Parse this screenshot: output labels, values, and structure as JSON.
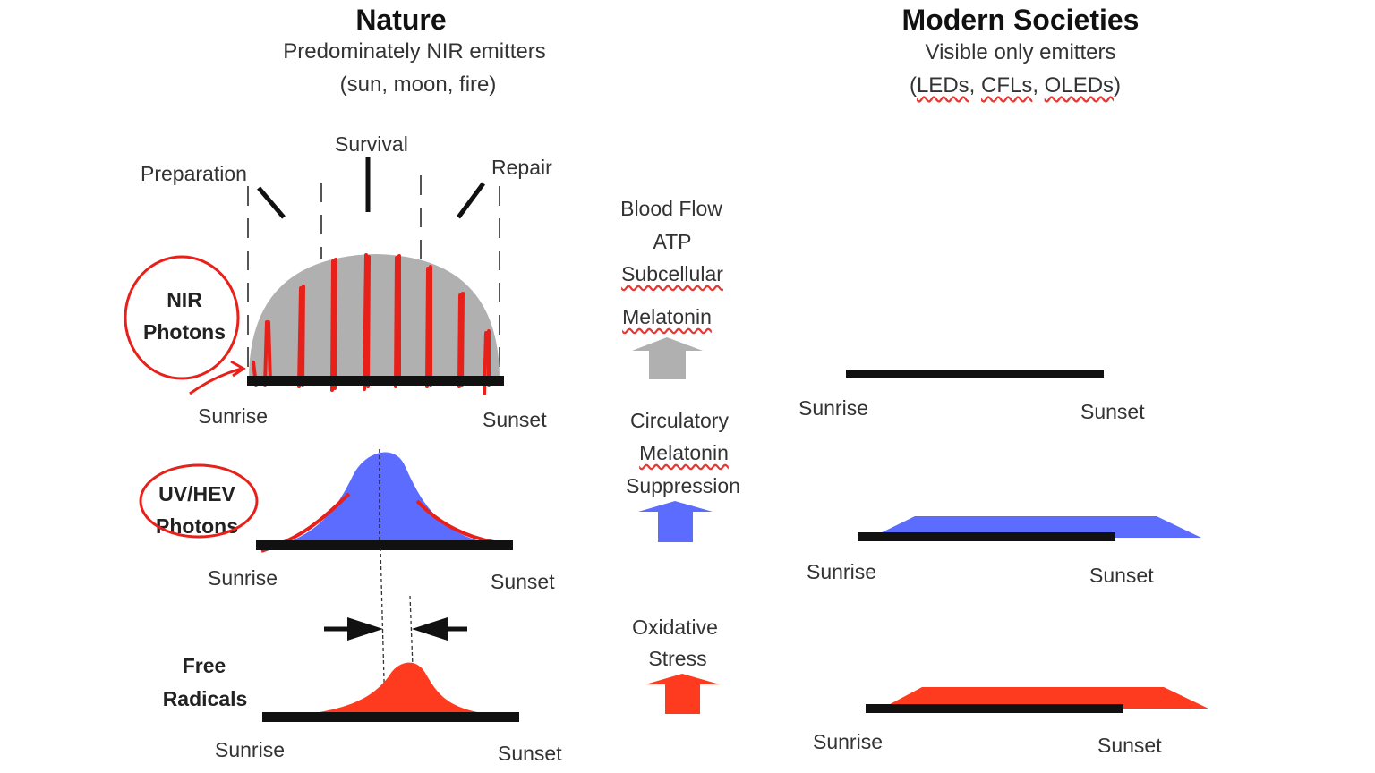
{
  "nature": {
    "title": "Nature",
    "subtitle1": "Predominately NIR emitters",
    "subtitle2": "(sun, moon, fire)"
  },
  "modern": {
    "title": "Modern Societies",
    "subtitle1": "Visible only emitters",
    "subtitle2_prefix": "(",
    "subtitle2_items": [
      "LEDs",
      "CFLs",
      "OLEDs"
    ],
    "subtitle2_sep": ", ",
    "subtitle2_suffix": ")"
  },
  "phases": {
    "preparation": "Preparation",
    "survival": "Survival",
    "repair": "Repair"
  },
  "rows": {
    "nir": {
      "label_line1": "NIR",
      "label_line2": "Photons",
      "sunrise": "Sunrise",
      "sunset": "Sunset"
    },
    "uv": {
      "label_line1": "UV/HEV",
      "label_line2": "Photons",
      "sunrise": "Sunrise",
      "sunset": "Sunset"
    },
    "fr": {
      "label_line1": "Free",
      "label_line2": "Radicals",
      "sunrise": "Sunrise",
      "sunset": "Sunset"
    }
  },
  "middle": {
    "block1": [
      "Blood Flow",
      "ATP",
      "Subcellular",
      "Melatonin"
    ],
    "block2": [
      "Circulatory",
      "Melatonin",
      "Suppression"
    ],
    "block3": [
      "Oxidative",
      "Stress"
    ]
  },
  "modern_rows": {
    "r1": {
      "sunrise": "Sunrise",
      "sunset": "Sunset"
    },
    "r2": {
      "sunrise": "Sunrise",
      "sunset": "Sunset"
    },
    "r3": {
      "sunrise": "Sunrise",
      "sunset": "Sunset"
    }
  },
  "colors": {
    "gray": "#b0b0b0",
    "blue": "#5b6cff",
    "red": "#ff3b1f",
    "annotation_red": "#e8201a",
    "black": "#111111"
  }
}
